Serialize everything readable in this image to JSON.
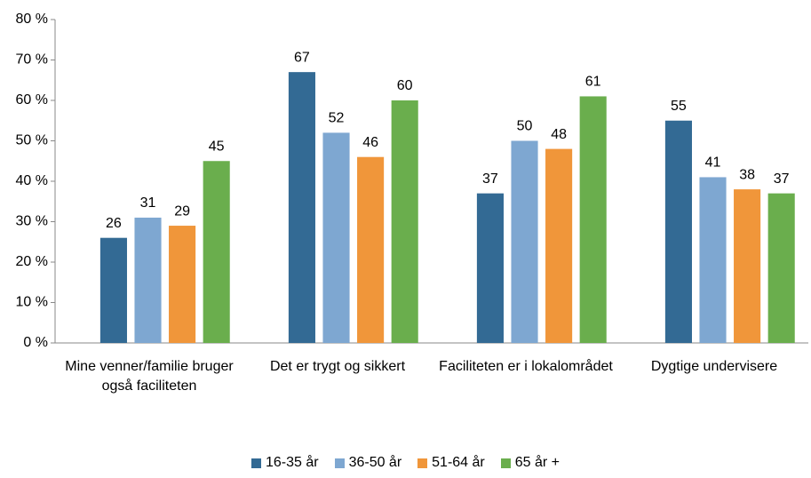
{
  "chart_data": {
    "type": "bar",
    "categories": [
      "Mine venner/familie bruger også faciliteten",
      "Det er trygt og sikkert",
      "Faciliteten er i lokalområdet",
      "Dygtige undervisere"
    ],
    "series": [
      {
        "name": "16-35 år",
        "color": "#336a94",
        "values": [
          26,
          67,
          37,
          55
        ]
      },
      {
        "name": "36-50 år",
        "color": "#7ea7d1",
        "values": [
          31,
          52,
          50,
          41
        ]
      },
      {
        "name": "51-64 år",
        "color": "#f0963a",
        "values": [
          29,
          46,
          48,
          38
        ]
      },
      {
        "name": "65 år +",
        "color": "#6aae4d",
        "values": [
          45,
          60,
          61,
          37
        ]
      }
    ],
    "ylim": [
      0,
      80
    ],
    "yticks": [
      {
        "value": 0,
        "label": "0 %"
      },
      {
        "value": 10,
        "label": "10 %"
      },
      {
        "value": 20,
        "label": "20 %"
      },
      {
        "value": 30,
        "label": "30 %"
      },
      {
        "value": 40,
        "label": "40 %"
      },
      {
        "value": 50,
        "label": "50 %"
      },
      {
        "value": 60,
        "label": "60 %"
      },
      {
        "value": 70,
        "label": "70 %"
      },
      {
        "value": 80,
        "label": "80 %"
      }
    ],
    "legend": "bottom"
  }
}
